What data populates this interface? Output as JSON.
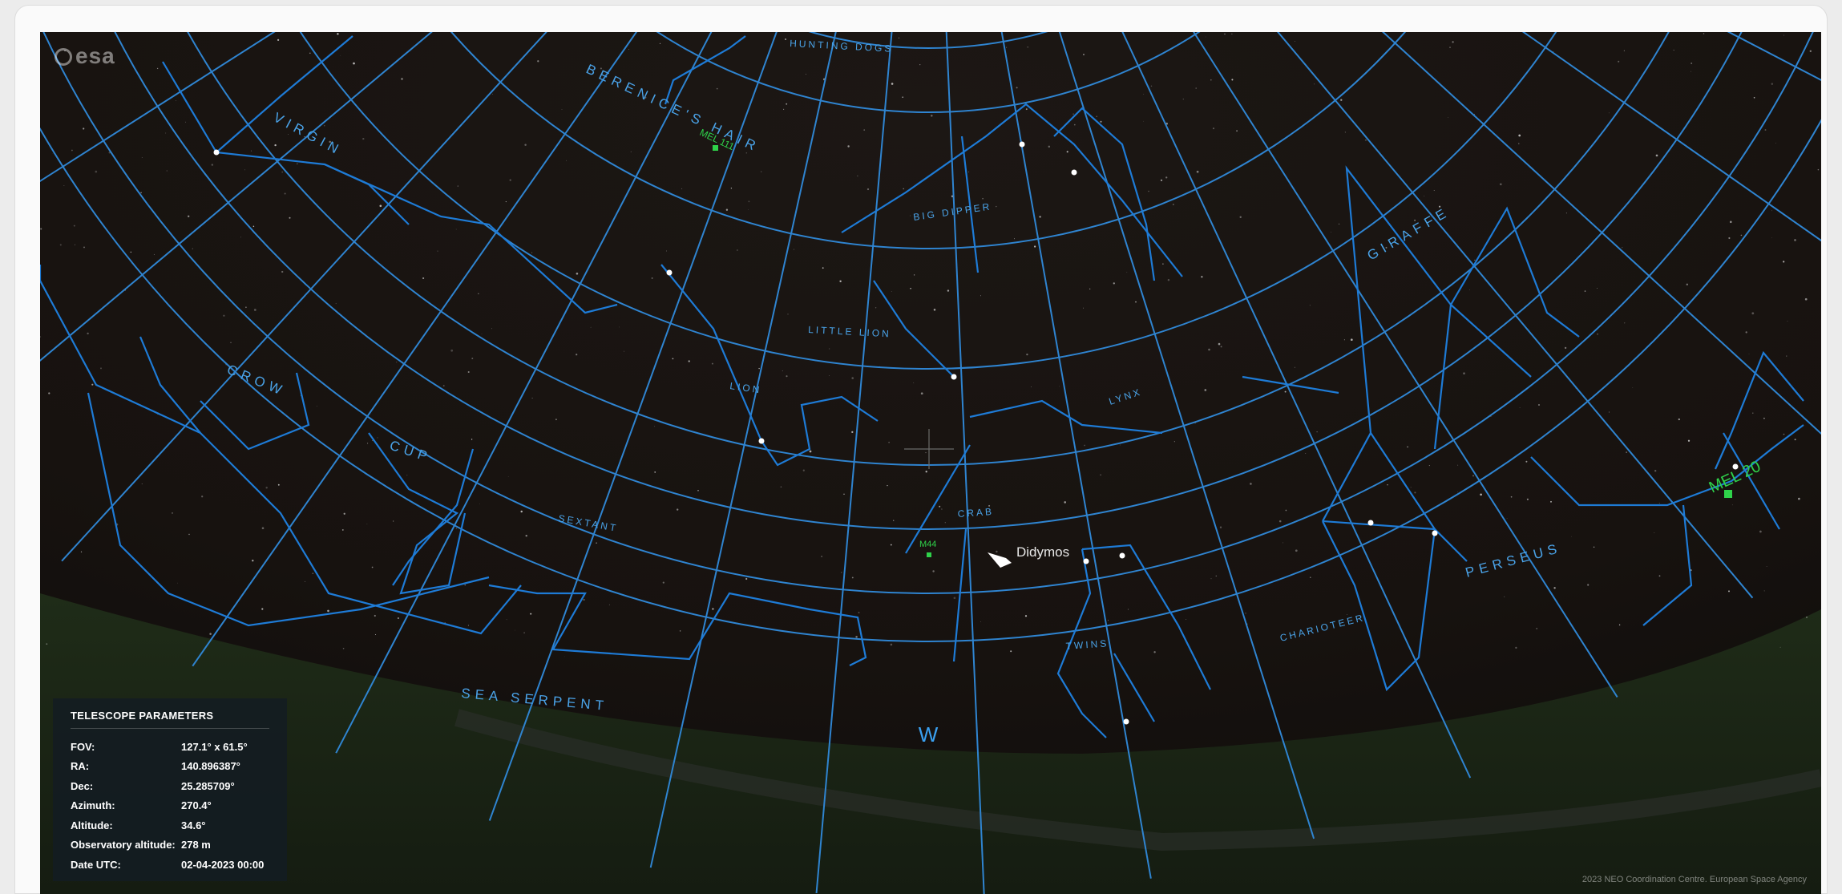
{
  "brand": {
    "logo_text": "esa"
  },
  "constellations": [
    {
      "name": "VIRGIN",
      "cls": "lbl-const",
      "rot": 28
    },
    {
      "name": "BERENICE'S HAIR",
      "cls": "lbl-const",
      "rot": 25
    },
    {
      "name": "HUNTING DOGS",
      "cls": "lbl-small",
      "rot": 3
    },
    {
      "name": "BIG DIPPER",
      "cls": "lbl-small",
      "rot": -8
    },
    {
      "name": "GIRAFFE",
      "cls": "lbl-const",
      "rot": -30
    },
    {
      "name": "CROW",
      "cls": "lbl-const",
      "rot": 22
    },
    {
      "name": "LITTLE LION",
      "cls": "lbl-small",
      "rot": 3
    },
    {
      "name": "LION",
      "cls": "lbl-small",
      "rot": 8
    },
    {
      "name": "LYNX",
      "cls": "lbl-small",
      "rot": -18
    },
    {
      "name": "CUP",
      "cls": "lbl-const",
      "rot": 18
    },
    {
      "name": "SEXTANT",
      "cls": "lbl-small",
      "rot": 10
    },
    {
      "name": "CRAB",
      "cls": "lbl-small",
      "rot": -4
    },
    {
      "name": "PERSEUS",
      "cls": "lbl-const",
      "rot": -15
    },
    {
      "name": "CHARIOTEER",
      "cls": "lbl-small",
      "rot": -14
    },
    {
      "name": "TWINS",
      "cls": "lbl-small",
      "rot": -4
    },
    {
      "name": "SEA SERPENT",
      "cls": "lbl-const",
      "rot": 5
    }
  ],
  "objects": [
    {
      "name": "MEL 111"
    },
    {
      "name": "M44"
    },
    {
      "name": "MEL 20"
    }
  ],
  "target": {
    "name": "Didymos"
  },
  "compass": {
    "direction": "W"
  },
  "telescope": {
    "title": "TELESCOPE PARAMETERS",
    "rows": [
      {
        "label": "FOV:",
        "value": "127.1° x 61.5°"
      },
      {
        "label": "RA:",
        "value": "140.896387°"
      },
      {
        "label": "Dec:",
        "value": "25.285709°"
      },
      {
        "label": "Azimuth:",
        "value": "270.4°"
      },
      {
        "label": "Altitude:",
        "value": "34.6°"
      },
      {
        "label": "Observatory altitude:",
        "value": "278 m"
      },
      {
        "label": "Date UTC:",
        "value": "02-04-2023 00:00"
      }
    ]
  },
  "credit": "2023 NEO Coordination Centre. European Space Agency",
  "colors": {
    "grid": "#2f84d0",
    "lines": "#1e7bd6",
    "object": "#2fd24a",
    "sky": "#1a1512",
    "ground": "#283a1c"
  }
}
